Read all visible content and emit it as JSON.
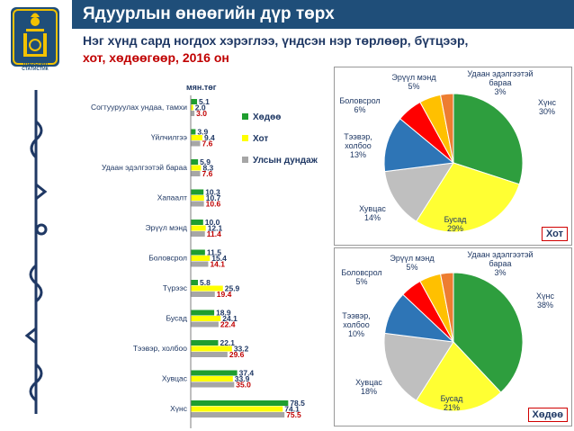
{
  "header": {
    "title": "Ядуурлын өнөөгийн дүр төрх",
    "subtitle_line1": "Нэг хүнд сард ногдох хэрэглээ, үндсэн нэр төрлөөр, бүтцээр,",
    "subtitle_line2": "хот, хөдөөгөөр, 2016 он"
  },
  "logo": {
    "text": "ҮНДЭСНИЙ\nСТАТИСТИК",
    "icon": "soyombo-emblem-icon"
  },
  "colors": {
    "header_bg": "#1f4e79",
    "series": [
      "#1f9e2f",
      "#ffff00",
      "#a6a6a6"
    ],
    "label_colors": [
      "#1f3864",
      "#1f3864",
      "#c00000"
    ],
    "pie": [
      "#2e9e3e",
      "#ffff33",
      "#bfbfbf",
      "#2e75b6",
      "#ff0000",
      "#ffc000",
      "#ed7d31"
    ]
  },
  "chart_data": [
    {
      "type": "bar",
      "orientation": "horizontal",
      "unit_label": "мян.төг",
      "categories": [
        "Согтууруулах ундаа, тамхи",
        "Үйлчилгээ",
        "Удаан эдэлгээтэй бараа",
        "Хапаалт",
        "Эрүүл мэнд",
        "Боловсрол",
        "Түрээс",
        "Бусад",
        "Тээвэр, холбоо",
        "Хувцас",
        "Хүнс"
      ],
      "series": [
        {
          "name": "Хөдөө",
          "values": [
            5.1,
            3.9,
            5.9,
            10.3,
            10.0,
            11.5,
            5.8,
            18.9,
            22.1,
            37.4,
            78.5
          ]
        },
        {
          "name": "Хот",
          "values": [
            2.0,
            9.4,
            8.3,
            10.7,
            12.1,
            15.4,
            25.9,
            24.1,
            33.2,
            33.9,
            74.1
          ]
        },
        {
          "name": "Улсын дундаж",
          "values": [
            3.0,
            7.6,
            7.6,
            10.6,
            11.4,
            14.1,
            19.4,
            22.4,
            29.6,
            35.0,
            75.5
          ]
        }
      ],
      "legend_position": "right"
    },
    {
      "type": "pie",
      "name": "Хот",
      "slices": [
        {
          "label": "Хүнс",
          "value": 30
        },
        {
          "label": "Бусад",
          "value": 29
        },
        {
          "label": "Хувцас",
          "value": 14
        },
        {
          "label": "Тээвэр, холбоо",
          "value": 13
        },
        {
          "label": "Боловсрол",
          "value": 6
        },
        {
          "label": "Эрүүл мэнд",
          "value": 5
        },
        {
          "label": "Удаан эдэлгээтэй бараа",
          "value": 3
        }
      ]
    },
    {
      "type": "pie",
      "name": "Хөдөө",
      "slices": [
        {
          "label": "Хүнс",
          "value": 38
        },
        {
          "label": "Бусад",
          "value": 21
        },
        {
          "label": "Хувцас",
          "value": 18
        },
        {
          "label": "Тээвэр, холбоо",
          "value": 10
        },
        {
          "label": "Боловсрол",
          "value": 5
        },
        {
          "label": "Эрүүл мэнд",
          "value": 5
        },
        {
          "label": "Удаан эдэлгээтэй бараа",
          "value": 3
        }
      ]
    }
  ]
}
